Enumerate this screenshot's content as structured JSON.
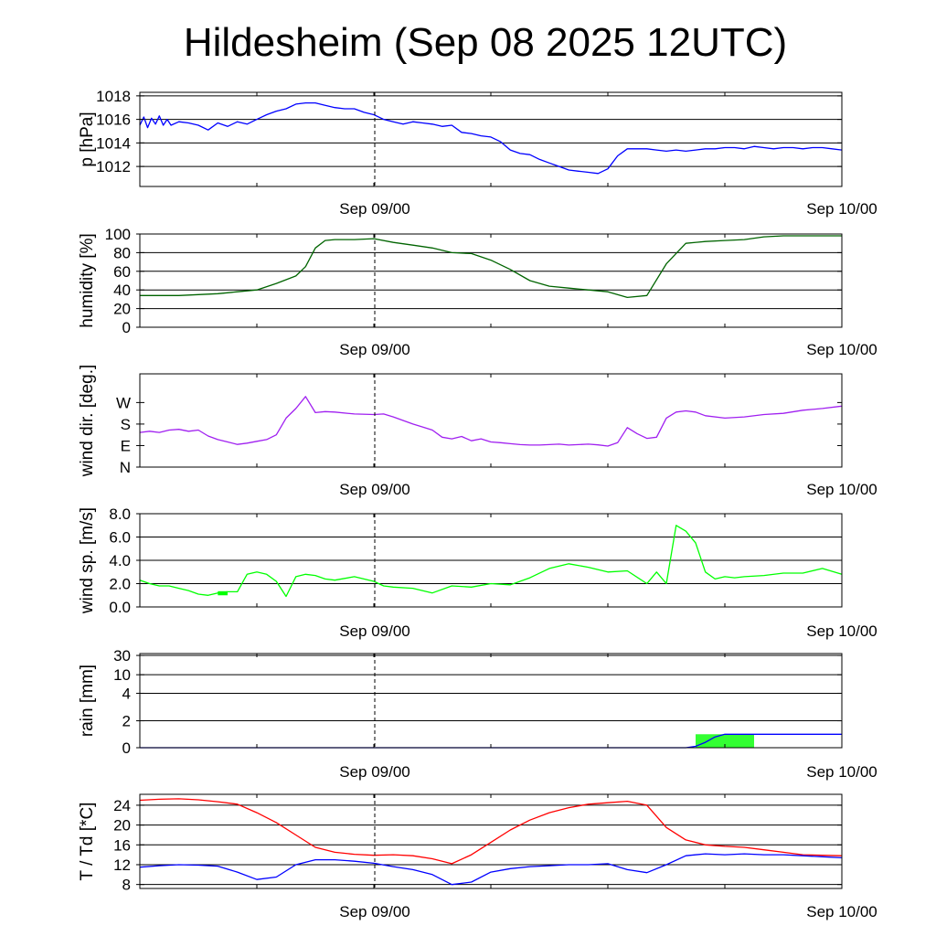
{
  "title": "Hildesheim (Sep 08 2025 12UTC)",
  "colors": {
    "pressure": "#0000ff",
    "humidity": "#006400",
    "wind_dir": "#a020f0",
    "wind_speed": "#00ff00",
    "rain_total": "#0000ff",
    "rain_bar": "#33ff33",
    "temperature": "#ff0000",
    "dewpoint": "#0000ff",
    "grid": "#000000"
  },
  "chart_data": [
    {
      "type": "line",
      "ylabel": "p [hPa]",
      "x_ticks": [
        "Sep 09/00",
        "Sep 10/00"
      ],
      "x_range_hours": [
        0,
        36
      ],
      "ylim": [
        1010.3,
        1018.3
      ],
      "yticks": [
        1018,
        1016,
        1014,
        1012
      ],
      "ytick_labels": [
        "1018",
        "1016",
        "1014",
        "1012"
      ],
      "grid": true,
      "series": [
        {
          "color_key": "pressure",
          "x": [
            0,
            0.2,
            0.4,
            0.6,
            0.8,
            1.0,
            1.2,
            1.4,
            1.6,
            2,
            2.5,
            3,
            3.5,
            4,
            4.5,
            5,
            5.5,
            6,
            6.5,
            7,
            7.5,
            8,
            8.5,
            9,
            9.5,
            10,
            10.5,
            11,
            11.5,
            12,
            12.5,
            13,
            13.5,
            14,
            14.5,
            15,
            15.5,
            16,
            16.5,
            17,
            17.5,
            18,
            18.5,
            19,
            19.5,
            20,
            20.5,
            21,
            21.5,
            22,
            22.5,
            23,
            23.5,
            24,
            24.5,
            25,
            25.5,
            26,
            26.5,
            27,
            27.5,
            28,
            28.5,
            29,
            29.5,
            30,
            30.5,
            31,
            31.5,
            32,
            32.5,
            33,
            33.5,
            34,
            34.5,
            35,
            35.5,
            36
          ],
          "values": [
            1015.5,
            1016.2,
            1015.3,
            1016.1,
            1015.6,
            1016.3,
            1015.5,
            1016.0,
            1015.5,
            1015.8,
            1015.7,
            1015.5,
            1015.1,
            1015.7,
            1015.4,
            1015.8,
            1015.6,
            1016.0,
            1016.4,
            1016.7,
            1016.9,
            1017.3,
            1017.4,
            1017.4,
            1017.2,
            1017.0,
            1016.9,
            1016.9,
            1016.6,
            1016.4,
            1016.0,
            1015.8,
            1015.6,
            1015.8,
            1015.7,
            1015.6,
            1015.4,
            1015.5,
            1014.9,
            1014.8,
            1014.6,
            1014.5,
            1014.1,
            1013.4,
            1013.1,
            1013.0,
            1012.6,
            1012.3,
            1012.0,
            1011.7,
            1011.6,
            1011.5,
            1011.4,
            1011.8,
            1012.9,
            1013.5,
            1013.5,
            1013.5,
            1013.4,
            1013.3,
            1013.4,
            1013.3,
            1013.4,
            1013.5,
            1013.5,
            1013.6,
            1013.6,
            1013.5,
            1013.7,
            1013.6,
            1013.5,
            1013.6,
            1013.6,
            1013.5,
            1013.6,
            1013.6,
            1013.5,
            1013.4
          ]
        }
      ]
    },
    {
      "type": "line",
      "ylabel": "humidity [%]",
      "x_ticks": [
        "Sep 09/00",
        "Sep 10/00"
      ],
      "x_range_hours": [
        0,
        36
      ],
      "ylim": [
        0,
        100
      ],
      "yticks": [
        100,
        80,
        60,
        40,
        20,
        0
      ],
      "ytick_labels": [
        "100",
        "80",
        "60",
        "40",
        "20",
        "0"
      ],
      "grid": true,
      "series": [
        {
          "color_key": "humidity",
          "x": [
            0,
            2,
            4,
            5,
            6,
            7,
            8,
            8.5,
            9,
            9.5,
            10,
            11,
            12,
            13,
            14,
            15,
            16,
            17,
            18,
            19,
            20,
            21,
            22,
            23,
            24,
            25,
            26,
            27,
            28,
            29,
            30,
            31,
            32,
            33,
            34,
            35,
            36
          ],
          "values": [
            34,
            34,
            36,
            38,
            40,
            47,
            55,
            65,
            85,
            93,
            94,
            94,
            95,
            91,
            88,
            85,
            80,
            79,
            72,
            62,
            50,
            44,
            42,
            40,
            38,
            32,
            34,
            68,
            90,
            92,
            93,
            94,
            97,
            98,
            98,
            98,
            98
          ]
        }
      ]
    },
    {
      "type": "line",
      "ylabel": "wind dir. [deg.]",
      "x_ticks": [
        "Sep 09/00",
        "Sep 10/00"
      ],
      "x_range_hours": [
        0,
        36
      ],
      "ylim": [
        0,
        390
      ],
      "yticks": [
        270,
        180,
        90,
        0
      ],
      "ytick_labels": [
        "W",
        "S",
        "E",
        "N"
      ],
      "grid": false,
      "series": [
        {
          "color_key": "wind_dir",
          "x": [
            0,
            0.5,
            1,
            1.5,
            2,
            2.5,
            3,
            3.5,
            4,
            4.5,
            5,
            5.5,
            6,
            6.5,
            7,
            7.5,
            8,
            8.5,
            9,
            9.5,
            10,
            11,
            12,
            12.5,
            13,
            13.5,
            14,
            14.5,
            15,
            15.5,
            16,
            16.5,
            17,
            17.5,
            18,
            18.5,
            19,
            19.5,
            20,
            20.5,
            21,
            21.5,
            22,
            22.5,
            23,
            23.5,
            24,
            24.5,
            25,
            25.5,
            26,
            26.5,
            27,
            27.5,
            28,
            28.5,
            29,
            30,
            31,
            32,
            33,
            34,
            35,
            36
          ],
          "values": [
            145,
            150,
            145,
            155,
            158,
            150,
            155,
            130,
            115,
            105,
            95,
            100,
            108,
            115,
            135,
            205,
            245,
            295,
            228,
            232,
            230,
            222,
            220,
            222,
            210,
            195,
            180,
            168,
            155,
            125,
            118,
            128,
            110,
            118,
            105,
            102,
            98,
            94,
            92,
            92,
            94,
            96,
            92,
            94,
            96,
            93,
            88,
            102,
            165,
            140,
            120,
            125,
            205,
            230,
            235,
            230,
            215,
            205,
            210,
            220,
            225,
            238,
            245,
            255
          ]
        }
      ]
    },
    {
      "type": "line",
      "ylabel": "wind sp. [m/s]",
      "x_ticks": [
        "Sep 09/00",
        "Sep 10/00"
      ],
      "x_range_hours": [
        0,
        36
      ],
      "ylim": [
        0,
        8
      ],
      "yticks": [
        8,
        6,
        4,
        2,
        0
      ],
      "ytick_labels": [
        "8.0",
        "6.0",
        "4.0",
        "2.0",
        "0.0"
      ],
      "grid": true,
      "series": [
        {
          "color_key": "wind_speed",
          "x": [
            0,
            0.5,
            1,
            1.5,
            2,
            2.5,
            3,
            3.5,
            4,
            4.5,
            5,
            5.5,
            6,
            6.5,
            7,
            7.5,
            8,
            8.5,
            9,
            9.5,
            10,
            11,
            12,
            12.5,
            13,
            14,
            15,
            16,
            17,
            18,
            19,
            20,
            21,
            22,
            23,
            24,
            25,
            26,
            26.5,
            27,
            27.5,
            28,
            28.5,
            29,
            29.5,
            30,
            30.5,
            31,
            32,
            33,
            34,
            35,
            36
          ],
          "values": [
            2.3,
            2.0,
            1.8,
            1.8,
            1.6,
            1.4,
            1.1,
            1.0,
            1.2,
            1.3,
            1.3,
            2.8,
            3.0,
            2.8,
            2.2,
            0.9,
            2.6,
            2.8,
            2.7,
            2.4,
            2.3,
            2.6,
            2.2,
            1.8,
            1.7,
            1.6,
            1.2,
            1.8,
            1.7,
            2.0,
            1.9,
            2.5,
            3.3,
            3.7,
            3.4,
            3.0,
            3.1,
            2.0,
            3.0,
            2.0,
            7.0,
            6.5,
            5.5,
            3.0,
            2.4,
            2.6,
            2.5,
            2.6,
            2.7,
            2.9,
            2.9,
            3.3,
            2.8
          ]
        }
      ]
    },
    {
      "type": "area",
      "ylabel": "rain [mm]",
      "x_ticks": [
        "Sep 09/00",
        "Sep 10/00"
      ],
      "x_range_hours": [
        0,
        36
      ],
      "ylim": [
        0,
        30
      ],
      "scale": "non-linear",
      "yticks": [
        30,
        10,
        4,
        2,
        0
      ],
      "ytick_labels": [
        "30",
        "10",
        "4",
        "2",
        "0"
      ],
      "grid": true,
      "bars": [
        {
          "color_key": "rain_bar",
          "x_start": 28.5,
          "x_end": 31.5,
          "value": 1.0
        }
      ],
      "series": [
        {
          "color_key": "rain_total",
          "x": [
            0,
            27,
            28,
            28.5,
            29,
            29.5,
            30,
            31,
            32,
            33,
            34,
            35,
            36
          ],
          "values": [
            0,
            0,
            0,
            0.1,
            0.4,
            0.8,
            1.0,
            1.0,
            1.0,
            1.0,
            1.0,
            1.0,
            1.0
          ]
        }
      ]
    },
    {
      "type": "line",
      "ylabel": "T / Td [*C]",
      "x_ticks": [
        "Sep 09/00",
        "Sep 10/00"
      ],
      "x_range_hours": [
        0,
        36
      ],
      "ylim": [
        7.2,
        26.2
      ],
      "yticks": [
        24,
        20,
        16,
        12,
        8
      ],
      "ytick_labels": [
        "24",
        "20",
        "16",
        "12",
        "8"
      ],
      "grid": true,
      "series": [
        {
          "color_key": "temperature",
          "x": [
            0,
            1,
            2,
            3,
            4,
            5,
            6,
            7,
            8,
            9,
            10,
            11,
            12,
            13,
            14,
            15,
            16,
            17,
            18,
            19,
            20,
            21,
            22,
            23,
            24,
            25,
            26,
            27,
            28,
            29,
            30,
            31,
            32,
            33,
            34,
            35,
            36
          ],
          "values": [
            25.0,
            25.2,
            25.3,
            25.1,
            24.7,
            24.2,
            22.5,
            20.5,
            18.0,
            15.5,
            14.5,
            14.1,
            13.9,
            14.0,
            13.8,
            13.2,
            12.2,
            14.0,
            16.5,
            19.0,
            21.0,
            22.5,
            23.5,
            24.2,
            24.5,
            24.8,
            24.0,
            19.5,
            17.0,
            16.0,
            15.7,
            15.5,
            15.0,
            14.5,
            14.0,
            13.9,
            13.8
          ]
        },
        {
          "color_key": "dewpoint",
          "x": [
            0,
            1,
            2,
            3,
            4,
            5,
            6,
            7,
            8,
            9,
            10,
            11,
            12,
            13,
            14,
            15,
            16,
            17,
            18,
            19,
            20,
            21,
            22,
            23,
            24,
            25,
            26,
            27,
            28,
            29,
            30,
            31,
            32,
            33,
            34,
            35,
            36
          ],
          "values": [
            11.5,
            11.8,
            12.0,
            11.9,
            11.7,
            10.5,
            9.0,
            9.5,
            12.0,
            13.0,
            13.0,
            12.7,
            12.3,
            11.6,
            11.0,
            10.0,
            8.0,
            8.5,
            10.5,
            11.2,
            11.6,
            11.8,
            12.0,
            12.0,
            12.2,
            11.0,
            10.4,
            12.0,
            13.8,
            14.2,
            14.0,
            14.2,
            14.0,
            14.0,
            13.8,
            13.6,
            13.4
          ]
        }
      ]
    }
  ]
}
